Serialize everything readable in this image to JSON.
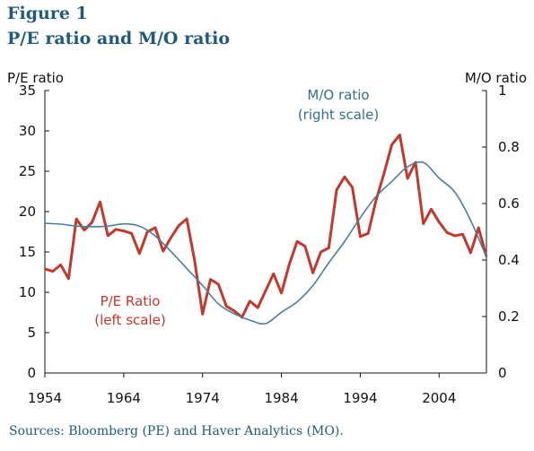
{
  "figure": {
    "label": "Figure 1",
    "title": "P/E ratio and M/O ratio",
    "source": "Sources: Bloomberg (PE) and Haver Analytics (MO)."
  },
  "colors": {
    "title": "#1f5a7a",
    "pe_series": "#c0392b",
    "mo_series": "#4a7f9a",
    "mo_annotation": "#2e6f8e",
    "axis": "#111111"
  },
  "chart_data": {
    "type": "line",
    "title": "P/E ratio and M/O ratio",
    "xlabel": "",
    "ylabel_left": "P/E ratio",
    "ylabel_right": "M/O ratio",
    "xlim": [
      1954,
      2010
    ],
    "ylim_left": [
      0,
      35
    ],
    "ylim_right": [
      0,
      1
    ],
    "x_ticks": [
      "1954",
      "1964",
      "1974",
      "1984",
      "1994",
      "2004"
    ],
    "y_ticks_left": [
      "0",
      "5",
      "10",
      "15",
      "20",
      "25",
      "30",
      "35"
    ],
    "y_ticks_right": [
      "0",
      "0.2",
      "0.4",
      "0.6",
      "0.8",
      "1"
    ],
    "grid": false,
    "annotations": {
      "mo_line1": "M/O ratio",
      "mo_line2": "(right scale)",
      "pe_line1": "P/E Ratio",
      "pe_line2": "(left scale)"
    },
    "series": [
      {
        "name": "P/E Ratio",
        "axis": "left",
        "x": [
          1954,
          1955,
          1956,
          1957,
          1958,
          1959,
          1960,
          1961,
          1962,
          1963,
          1964,
          1965,
          1966,
          1967,
          1968,
          1969,
          1970,
          1971,
          1972,
          1973,
          1974,
          1975,
          1976,
          1977,
          1978,
          1979,
          1980,
          1981,
          1982,
          1983,
          1984,
          1985,
          1986,
          1987,
          1988,
          1989,
          1990,
          1991,
          1992,
          1993,
          1994,
          1995,
          1996,
          1997,
          1998,
          1999,
          2000,
          2001,
          2002,
          2003,
          2004,
          2005,
          2006,
          2007,
          2008,
          2009,
          2010
        ],
        "values": [
          12.9,
          12.6,
          13.4,
          11.7,
          19.1,
          17.7,
          18.7,
          21.2,
          17.0,
          17.8,
          17.6,
          17.3,
          14.8,
          17.5,
          18.0,
          15.1,
          16.8,
          18.3,
          19.1,
          13.9,
          7.3,
          11.6,
          11.0,
          8.3,
          7.7,
          6.9,
          8.9,
          8.1,
          10.2,
          12.3,
          9.9,
          13.5,
          16.3,
          15.7,
          12.4,
          15.0,
          15.5,
          22.7,
          24.3,
          23.0,
          16.9,
          17.3,
          21.4,
          24.7,
          28.3,
          29.5,
          24.1,
          26.1,
          18.5,
          20.3,
          18.7,
          17.4,
          17.0,
          17.2,
          14.9,
          18.0,
          14.4
        ]
      },
      {
        "name": "M/O ratio",
        "axis": "right",
        "x": [
          1954,
          1956,
          1958,
          1960,
          1962,
          1964,
          1966,
          1968,
          1970,
          1972,
          1974,
          1976,
          1978,
          1980,
          1982,
          1984,
          1986,
          1988,
          1990,
          1992,
          1994,
          1996,
          1998,
          2000,
          2002,
          2004,
          2006,
          2008,
          2010
        ],
        "values": [
          0.53,
          0.527,
          0.52,
          0.518,
          0.52,
          0.528,
          0.52,
          0.485,
          0.43,
          0.37,
          0.31,
          0.245,
          0.21,
          0.187,
          0.175,
          0.215,
          0.252,
          0.31,
          0.39,
          0.465,
          0.55,
          0.625,
          0.678,
          0.73,
          0.745,
          0.69,
          0.64,
          0.54,
          0.41
        ]
      }
    ]
  }
}
